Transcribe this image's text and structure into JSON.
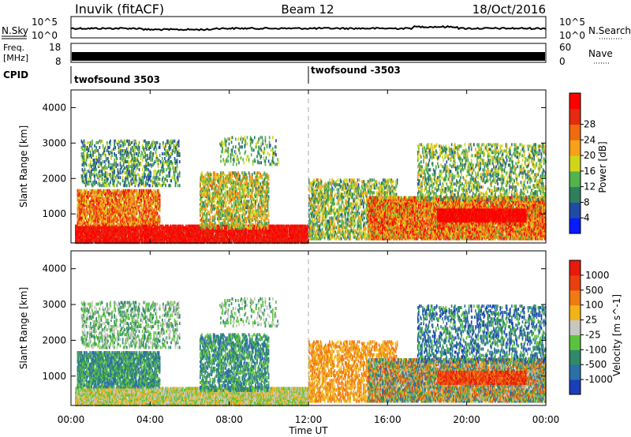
{
  "header": {
    "radar": "Inuvik (fitACF)",
    "beam": "Beam 12",
    "date": "18/Oct/2016"
  },
  "top_panels": {
    "nsky": {
      "label": "N.Sky",
      "left_ticks": [
        "10^5",
        "10^0"
      ],
      "right_ticks": [
        "10^5",
        "10^0"
      ],
      "right_label": "N.Search"
    },
    "freq": {
      "label_lines": [
        "Freq.",
        "[MHz]"
      ],
      "left_ticks": [
        "18",
        "8"
      ],
      "right_ticks": [
        "60",
        "0"
      ],
      "right_label": "Nave"
    },
    "cpid": {
      "label": "CPID",
      "entries": [
        "twofsound 3503",
        "twofsound -3503"
      ]
    }
  },
  "x_axis": {
    "label": "Time UT",
    "ticks": [
      "00:00",
      "04:00",
      "08:00",
      "12:00",
      "16:00",
      "20:00",
      "00:00"
    ]
  },
  "chart_data": [
    {
      "type": "heatmap",
      "title": "",
      "xlabel": "Time UT",
      "ylabel": "Slant Range [km]",
      "x_ticks": [
        "00:00",
        "04:00",
        "08:00",
        "12:00",
        "16:00",
        "20:00",
        "00:00"
      ],
      "y_ticks": [
        1000,
        2000,
        3000,
        4000
      ],
      "ylim": [
        180,
        4500
      ],
      "colorbar": {
        "label": "Power [dB]",
        "ticks": [
          4,
          8,
          12,
          16,
          20,
          24,
          28
        ],
        "range": [
          0,
          30
        ],
        "colors": [
          "#0a1aff",
          "#1f4aa6",
          "#2f7f5f",
          "#52b34f",
          "#cfd61a",
          "#f5a21a",
          "#f06a10",
          "#e52b10",
          "#ff0000"
        ]
      }
    },
    {
      "type": "heatmap",
      "title": "",
      "xlabel": "Time UT",
      "ylabel": "Slant Range [km]",
      "x_ticks": [
        "00:00",
        "04:00",
        "08:00",
        "12:00",
        "16:00",
        "20:00",
        "00:00"
      ],
      "y_ticks": [
        1000,
        2000,
        3000,
        4000
      ],
      "ylim": [
        180,
        4500
      ],
      "colorbar": {
        "label": "Velocity [m s^-1]",
        "ticks": [
          "1000",
          "500",
          "100",
          "25",
          "-25",
          "-100",
          "-500",
          "-1000"
        ],
        "colors": [
          "#1a3fb8",
          "#2c6fa8",
          "#2f8a6a",
          "#5cc23d",
          "#c8c8c2",
          "#f2b318",
          "#f07a14",
          "#ea4010",
          "#e81a0c"
        ]
      }
    }
  ]
}
